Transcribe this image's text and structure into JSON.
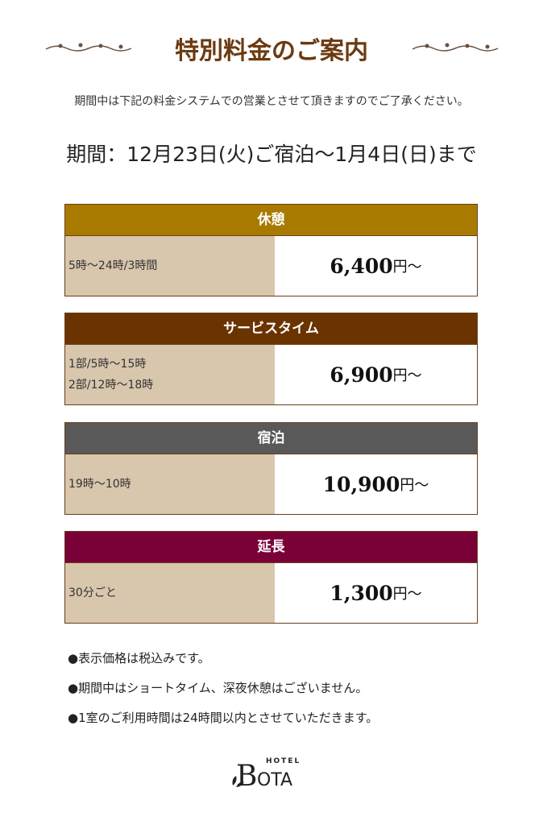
{
  "header": {
    "title": "特別料金のご案内",
    "ornament": "vine-ornament"
  },
  "intro": "期間中は下記の料金システムでの営業とさせて頂きますのでご了承ください。",
  "period": "期間：12月23日(火)ご宿泊～1月4日(日)まで",
  "plans": [
    {
      "name": "休憩",
      "color": "#a87b00",
      "times": [
        "5時～24時/3時間"
      ],
      "price": "6,400",
      "suffix": "円～"
    },
    {
      "name": "サービスタイム",
      "color": "#6b3300",
      "times": [
        "1部/5時～15時",
        "2部/12時～18時"
      ],
      "price": "6,900",
      "suffix": "円～"
    },
    {
      "name": "宿泊",
      "color": "#595959",
      "times": [
        "19時～10時"
      ],
      "price": "10,900",
      "suffix": "円～"
    },
    {
      "name": "延長",
      "color": "#7a0038",
      "times": [
        "30分ごと"
      ],
      "price": "1,300",
      "suffix": "円～"
    }
  ],
  "notes": [
    "●表示価格は税込みです。",
    "●期間中はショートタイム、深夜休憩はございません。",
    "●1室のご利用時間は24時間以内とさせていただきます。"
  ],
  "logo": {
    "small": "HOTEL",
    "main": "BOTA"
  }
}
